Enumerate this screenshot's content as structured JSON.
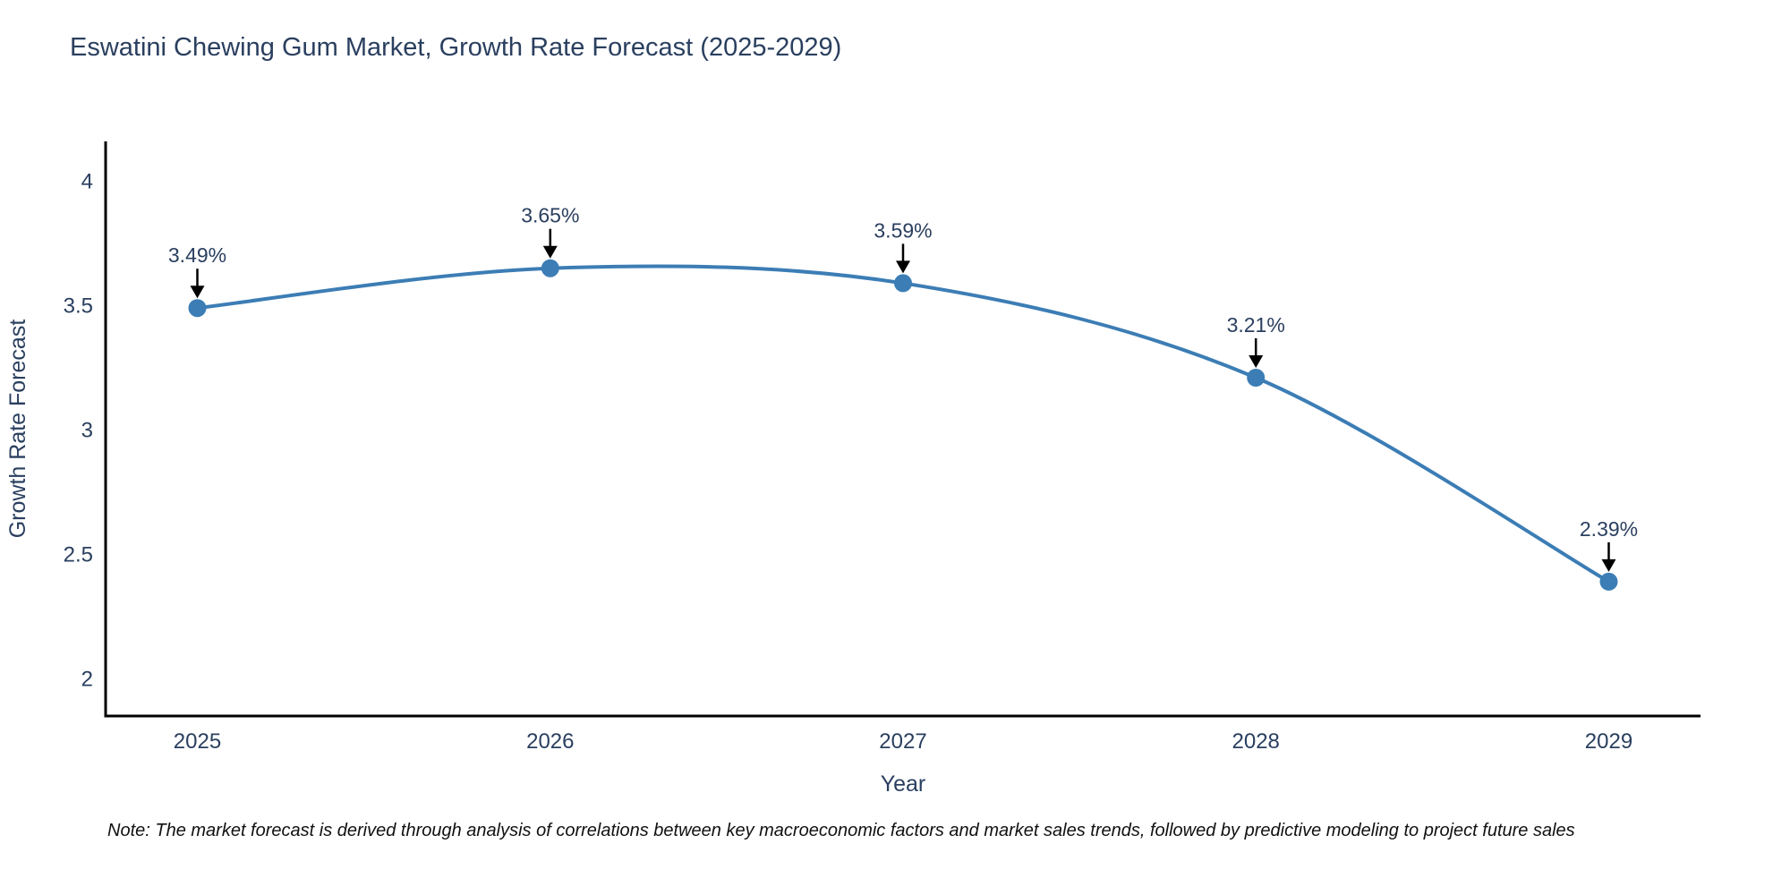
{
  "page": {
    "background": "#ffffff"
  },
  "title": "Eswatini Chewing Gum Market, Growth Rate Forecast (2025-2029)",
  "note": "Note: The market forecast is derived through analysis of correlations between key macroeconomic factors and market sales trends, followed by predictive modeling to project future sales",
  "chart_data": {
    "type": "line",
    "title": "Eswatini Chewing Gum Market, Growth Rate Forecast (2025-2029)",
    "xlabel": "Year",
    "ylabel": "Growth Rate Forecast",
    "x": [
      2025,
      2026,
      2027,
      2028,
      2029
    ],
    "series": [
      {
        "name": "Growth Rate Forecast",
        "values": [
          3.49,
          3.65,
          3.59,
          3.21,
          2.39
        ],
        "labels": [
          "3.49%",
          "3.65%",
          "3.59%",
          "3.21%",
          "2.39%"
        ]
      }
    ],
    "xticks": [
      "2025",
      "2026",
      "2027",
      "2028",
      "2029"
    ],
    "yticks": [
      2,
      2.5,
      3,
      3.5,
      4
    ],
    "xlim": [
      2024.74,
      2029.26
    ],
    "ylim": [
      1.85,
      4.16
    ],
    "grid": false,
    "legend": "none",
    "line_shape": "spline",
    "annotation_style": "black-down-arrow",
    "colors": {
      "line": "#3c7db5",
      "marker": "#3c7db5",
      "axis": "#000000",
      "text": "#2a3f5f",
      "annotation_arrow": "#000000",
      "note_text": "#111111"
    }
  }
}
